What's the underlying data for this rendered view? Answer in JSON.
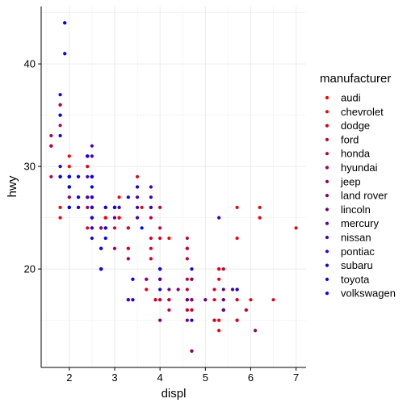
{
  "chart_data": {
    "type": "scatter",
    "xlabel": "displ",
    "ylabel": "hwy",
    "xlim": [
      1.38,
      7.22
    ],
    "ylim": [
      10.4,
      45.6
    ],
    "x_ticks": [
      2,
      3,
      4,
      5,
      6,
      7
    ],
    "y_ticks": [
      20,
      30,
      40
    ],
    "grid": true,
    "legend": {
      "title": "manufacturer",
      "placement": "right",
      "entries": [
        {
          "name": "audi",
          "color": "#FF0000"
        },
        {
          "name": "chevrolet",
          "color": "#EC0013"
        },
        {
          "name": "dodge",
          "color": "#DA0025"
        },
        {
          "name": "ford",
          "color": "#C80037"
        },
        {
          "name": "honda",
          "color": "#B60049"
        },
        {
          "name": "hyundai",
          "color": "#A4005B"
        },
        {
          "name": "jeep",
          "color": "#92006D"
        },
        {
          "name": "land rover",
          "color": "#800080"
        },
        {
          "name": "lincoln",
          "color": "#6D0092"
        },
        {
          "name": "mercury",
          "color": "#5B00A4"
        },
        {
          "name": "nissan",
          "color": "#4900B6"
        },
        {
          "name": "pontiac",
          "color": "#3700C8"
        },
        {
          "name": "subaru",
          "color": "#2500DA"
        },
        {
          "name": "toyota",
          "color": "#1300EC"
        },
        {
          "name": "volkswagen",
          "color": "#0000FF"
        }
      ]
    },
    "series": [
      {
        "name": "audi",
        "points": [
          [
            1.8,
            29
          ],
          [
            1.8,
            29
          ],
          [
            2.0,
            31
          ],
          [
            2.0,
            30
          ],
          [
            2.8,
            26
          ],
          [
            2.8,
            26
          ],
          [
            3.1,
            27
          ],
          [
            1.8,
            26
          ],
          [
            1.8,
            25
          ],
          [
            2.0,
            28
          ],
          [
            2.0,
            27
          ],
          [
            2.8,
            25
          ],
          [
            2.8,
            25
          ],
          [
            3.1,
            25
          ],
          [
            3.1,
            25
          ],
          [
            2.8,
            25
          ],
          [
            3.1,
            25
          ],
          [
            4.2,
            23
          ]
        ]
      },
      {
        "name": "chevrolet",
        "points": [
          [
            5.3,
            20
          ],
          [
            5.3,
            15
          ],
          [
            5.3,
            20
          ],
          [
            5.7,
            17
          ],
          [
            6.0,
            17
          ],
          [
            5.7,
            26
          ],
          [
            5.7,
            23
          ],
          [
            6.2,
            26
          ],
          [
            6.2,
            25
          ],
          [
            7.0,
            24
          ],
          [
            5.3,
            19
          ],
          [
            5.3,
            14
          ],
          [
            5.7,
            15
          ],
          [
            6.5,
            17
          ],
          [
            2.4,
            27
          ],
          [
            2.4,
            30
          ],
          [
            3.1,
            26
          ],
          [
            3.5,
            29
          ],
          [
            3.6,
            26
          ]
        ]
      },
      {
        "name": "dodge",
        "points": [
          [
            2.4,
            24
          ],
          [
            3.0,
            24
          ],
          [
            3.3,
            22
          ],
          [
            3.3,
            22
          ],
          [
            3.3,
            24
          ],
          [
            3.3,
            24
          ],
          [
            3.3,
            17
          ],
          [
            3.8,
            22
          ],
          [
            3.8,
            21
          ],
          [
            3.8,
            23
          ],
          [
            4.0,
            23
          ],
          [
            3.7,
            19
          ],
          [
            3.7,
            18
          ],
          [
            3.9,
            17
          ],
          [
            3.9,
            17
          ],
          [
            4.7,
            19
          ],
          [
            4.7,
            19
          ],
          [
            4.7,
            12
          ],
          [
            4.7,
            17
          ],
          [
            5.2,
            15
          ],
          [
            5.2,
            17
          ],
          [
            3.9,
            17
          ],
          [
            4.7,
            12
          ],
          [
            4.7,
            17
          ],
          [
            4.7,
            16
          ],
          [
            5.2,
            18
          ],
          [
            5.7,
            15
          ],
          [
            5.9,
            16
          ],
          [
            4.7,
            12
          ],
          [
            4.7,
            17
          ],
          [
            4.7,
            17
          ],
          [
            4.7,
            16
          ],
          [
            5.2,
            15
          ],
          [
            5.7,
            17
          ],
          [
            5.9,
            16
          ]
        ]
      },
      {
        "name": "ford",
        "points": [
          [
            4.2,
            17
          ],
          [
            4.2,
            17
          ],
          [
            4.6,
            19
          ],
          [
            4.6,
            17
          ],
          [
            4.6,
            17
          ],
          [
            5.4,
            16
          ],
          [
            5.4,
            16
          ],
          [
            5.4,
            17
          ],
          [
            4.0,
            19
          ],
          [
            4.0,
            19
          ],
          [
            4.0,
            17
          ],
          [
            4.0,
            17
          ],
          [
            4.6,
            17
          ],
          [
            5.0,
            17
          ],
          [
            4.2,
            17
          ],
          [
            4.2,
            16
          ],
          [
            4.6,
            16
          ],
          [
            4.6,
            16
          ],
          [
            4.6,
            18
          ],
          [
            5.4,
            17
          ],
          [
            5.4,
            16
          ],
          [
            3.8,
            26
          ],
          [
            3.8,
            25
          ],
          [
            4.0,
            26
          ],
          [
            4.0,
            24
          ],
          [
            4.6,
            21
          ],
          [
            4.6,
            22
          ],
          [
            4.6,
            23
          ],
          [
            4.6,
            22
          ],
          [
            5.4,
            20
          ]
        ]
      },
      {
        "name": "honda",
        "points": [
          [
            1.6,
            33
          ],
          [
            1.6,
            32
          ],
          [
            1.6,
            32
          ],
          [
            1.6,
            29
          ],
          [
            1.6,
            32
          ],
          [
            1.8,
            34
          ],
          [
            1.8,
            36
          ],
          [
            1.8,
            36
          ],
          [
            2.0,
            29
          ]
        ]
      },
      {
        "name": "hyundai",
        "points": [
          [
            2.4,
            26
          ],
          [
            2.4,
            27
          ],
          [
            2.5,
            26
          ],
          [
            2.5,
            24
          ],
          [
            3.3,
            21
          ],
          [
            2.0,
            28
          ],
          [
            2.0,
            27
          ],
          [
            2.0,
            26
          ],
          [
            2.0,
            29
          ],
          [
            2.7,
            24
          ],
          [
            2.7,
            24
          ],
          [
            2.7,
            24
          ],
          [
            2.0,
            29
          ]
        ]
      },
      {
        "name": "jeep",
        "points": [
          [
            3.0,
            22
          ],
          [
            3.7,
            19
          ],
          [
            4.0,
            20
          ],
          [
            4.7,
            17
          ],
          [
            4.7,
            12
          ],
          [
            4.7,
            19
          ],
          [
            5.7,
            18
          ],
          [
            6.1,
            14
          ]
        ]
      },
      {
        "name": "land rover",
        "points": [
          [
            4.0,
            15
          ],
          [
            4.2,
            18
          ],
          [
            4.4,
            18
          ],
          [
            4.6,
            15
          ]
        ]
      },
      {
        "name": "lincoln",
        "points": [
          [
            5.4,
            17
          ],
          [
            5.4,
            16
          ],
          [
            5.4,
            18
          ]
        ]
      },
      {
        "name": "mercury",
        "points": [
          [
            4.0,
            19
          ],
          [
            4.0,
            19
          ],
          [
            4.6,
            17
          ],
          [
            5.0,
            17
          ]
        ]
      },
      {
        "name": "nissan",
        "points": [
          [
            2.4,
            29
          ],
          [
            2.4,
            27
          ],
          [
            2.5,
            31
          ],
          [
            2.5,
            32
          ],
          [
            3.5,
            27
          ],
          [
            3.5,
            26
          ],
          [
            3.0,
            26
          ],
          [
            3.0,
            25
          ],
          [
            3.5,
            25
          ],
          [
            3.3,
            17
          ],
          [
            3.3,
            17
          ],
          [
            4.0,
            20
          ],
          [
            5.6,
            18
          ]
        ]
      },
      {
        "name": "pontiac",
        "points": [
          [
            3.1,
            26
          ],
          [
            3.8,
            26
          ],
          [
            3.8,
            27
          ],
          [
            3.8,
            28
          ],
          [
            5.3,
            25
          ]
        ]
      },
      {
        "name": "subaru",
        "points": [
          [
            2.5,
            25
          ],
          [
            2.5,
            24
          ],
          [
            2.5,
            27
          ],
          [
            2.5,
            25
          ],
          [
            2.5,
            26
          ],
          [
            2.5,
            23
          ],
          [
            2.2,
            26
          ],
          [
            2.2,
            26
          ],
          [
            2.5,
            26
          ],
          [
            2.5,
            26
          ],
          [
            2.5,
            25
          ],
          [
            2.5,
            27
          ],
          [
            2.5,
            25
          ],
          [
            2.5,
            27
          ]
        ]
      },
      {
        "name": "toyota",
        "points": [
          [
            2.7,
            20
          ],
          [
            2.7,
            20
          ],
          [
            2.7,
            22
          ],
          [
            3.4,
            17
          ],
          [
            3.4,
            19
          ],
          [
            4.0,
            18
          ],
          [
            4.7,
            20
          ],
          [
            2.2,
            29
          ],
          [
            2.2,
            27
          ],
          [
            2.4,
            31
          ],
          [
            2.4,
            31
          ],
          [
            3.0,
            26
          ],
          [
            3.0,
            26
          ],
          [
            3.5,
            28
          ],
          [
            2.2,
            27
          ],
          [
            2.2,
            29
          ],
          [
            2.4,
            31
          ],
          [
            2.4,
            31
          ],
          [
            3.0,
            26
          ],
          [
            3.0,
            26
          ],
          [
            3.3,
            27
          ],
          [
            1.8,
            30
          ],
          [
            1.8,
            33
          ],
          [
            1.8,
            35
          ],
          [
            1.8,
            37
          ],
          [
            1.8,
            35
          ],
          [
            4.7,
            15
          ],
          [
            5.7,
            18
          ],
          [
            2.7,
            20
          ],
          [
            2.7,
            20
          ],
          [
            2.7,
            22
          ],
          [
            3.4,
            17
          ],
          [
            3.4,
            19
          ],
          [
            4.0,
            20
          ]
        ]
      },
      {
        "name": "volkswagen",
        "points": [
          [
            2.0,
            29
          ],
          [
            2.0,
            26
          ],
          [
            2.8,
            26
          ],
          [
            2.0,
            29
          ],
          [
            2.0,
            29
          ],
          [
            2.0,
            28
          ],
          [
            2.0,
            29
          ],
          [
            2.5,
            29
          ],
          [
            2.5,
            29
          ],
          [
            1.9,
            44
          ],
          [
            1.9,
            41
          ],
          [
            2.0,
            29
          ],
          [
            2.0,
            26
          ],
          [
            2.5,
            28
          ],
          [
            2.5,
            29
          ],
          [
            1.8,
            29
          ],
          [
            1.8,
            29
          ],
          [
            2.0,
            29
          ],
          [
            2.8,
            23
          ],
          [
            3.6,
            24
          ],
          [
            1.9,
            44
          ],
          [
            2.0,
            29
          ],
          [
            2.0,
            26
          ],
          [
            2.8,
            24
          ],
          [
            2.0,
            29
          ],
          [
            2.0,
            28
          ],
          [
            2.0,
            29
          ],
          [
            2.5,
            29
          ],
          [
            2.5,
            29
          ],
          [
            2.8,
            24
          ],
          [
            1.8,
            29
          ],
          [
            1.8,
            29
          ]
        ]
      }
    ]
  }
}
